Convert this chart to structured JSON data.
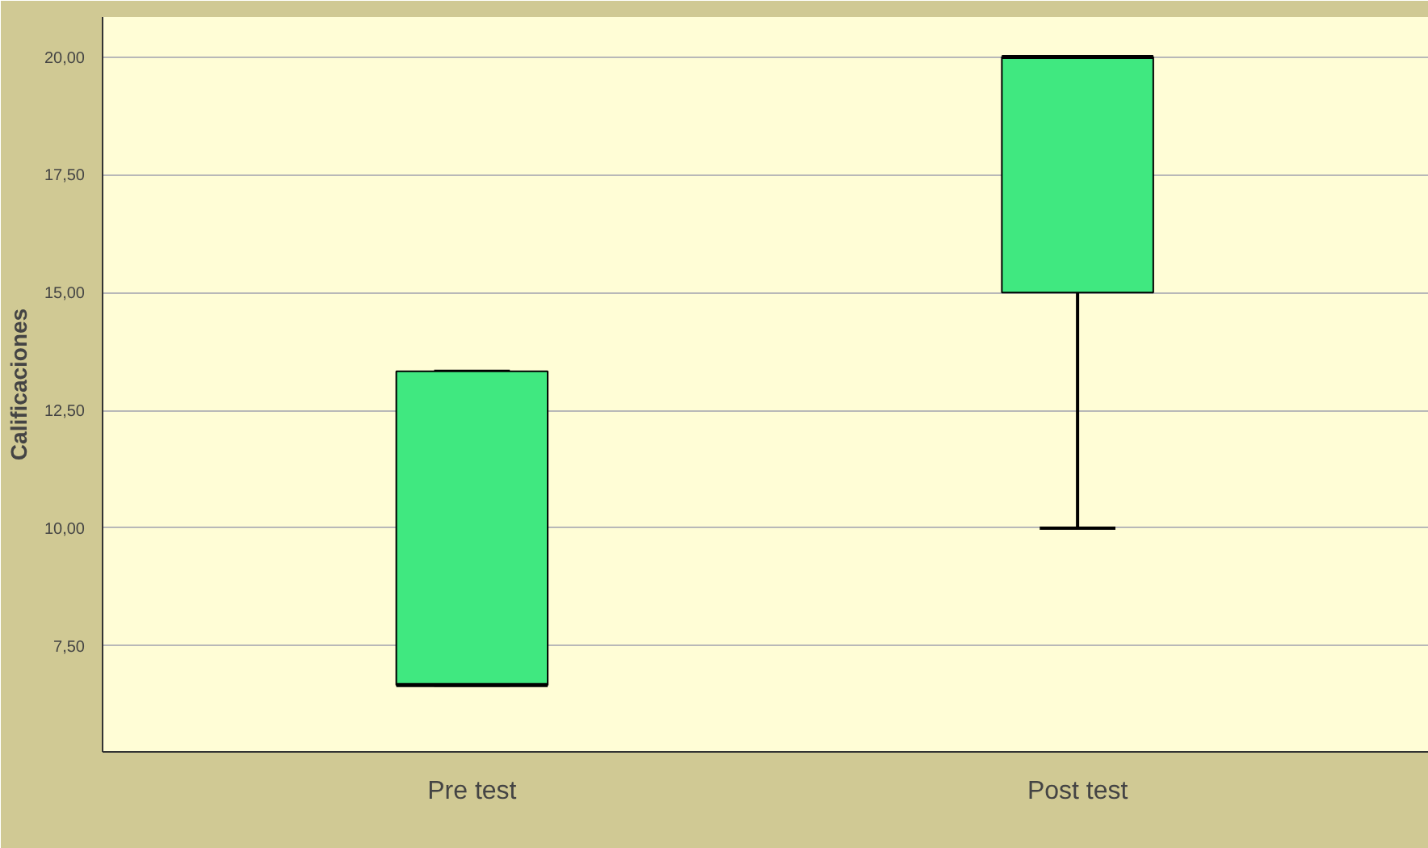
{
  "chart_data": {
    "type": "box",
    "categories": [
      "Pre test",
      "Post test"
    ],
    "ylabel": "Calificaciones",
    "color": "#40e880",
    "boxes": [
      {
        "low": 6.67,
        "q1": 6.67,
        "median": 6.67,
        "q3": 13.33,
        "high": 13.33
      },
      {
        "low": 10,
        "q1": 15,
        "median": 20,
        "q3": 20,
        "high": 20
      }
    ],
    "ylim": [
      5.25,
      20.85
    ],
    "yticks": [
      {
        "value": 7.5,
        "label": "7,50"
      },
      {
        "value": 10,
        "label": "10,00"
      },
      {
        "value": 12.5,
        "label": "12,50"
      },
      {
        "value": 15,
        "label": "15,00"
      },
      {
        "value": 17.5,
        "label": "17,50"
      },
      {
        "value": 20,
        "label": "20,00"
      }
    ],
    "grid": "y"
  }
}
